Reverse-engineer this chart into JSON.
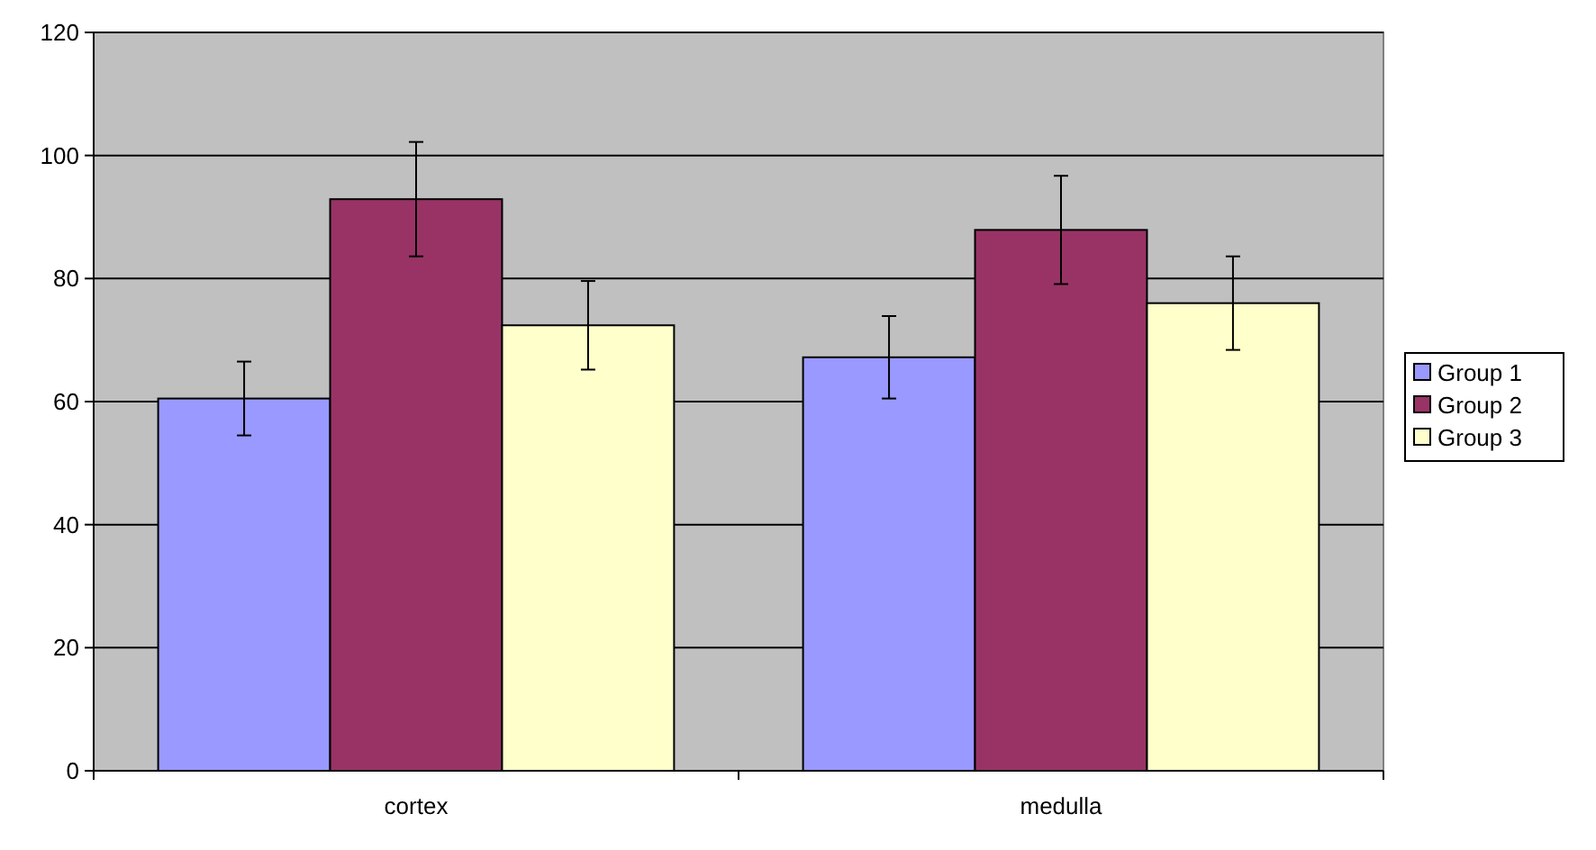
{
  "chart_data": {
    "type": "bar",
    "categories": [
      "cortex",
      "medulla"
    ],
    "series": [
      {
        "name": "Group 1",
        "color": "#9999ff",
        "values": [
          60.5,
          67.2
        ],
        "errors": [
          6,
          6.7
        ]
      },
      {
        "name": "Group 2",
        "color": "#993366",
        "values": [
          92.9,
          87.9
        ],
        "errors": [
          9.3,
          8.8
        ]
      },
      {
        "name": "Group 3",
        "color": "#ffffcc",
        "values": [
          72.4,
          76
        ],
        "errors": [
          7.2,
          7.6
        ]
      }
    ],
    "ylim": [
      0,
      120
    ],
    "yticks": [
      0,
      20,
      40,
      60,
      80,
      100,
      120
    ],
    "grid": "y",
    "legend": "right"
  }
}
